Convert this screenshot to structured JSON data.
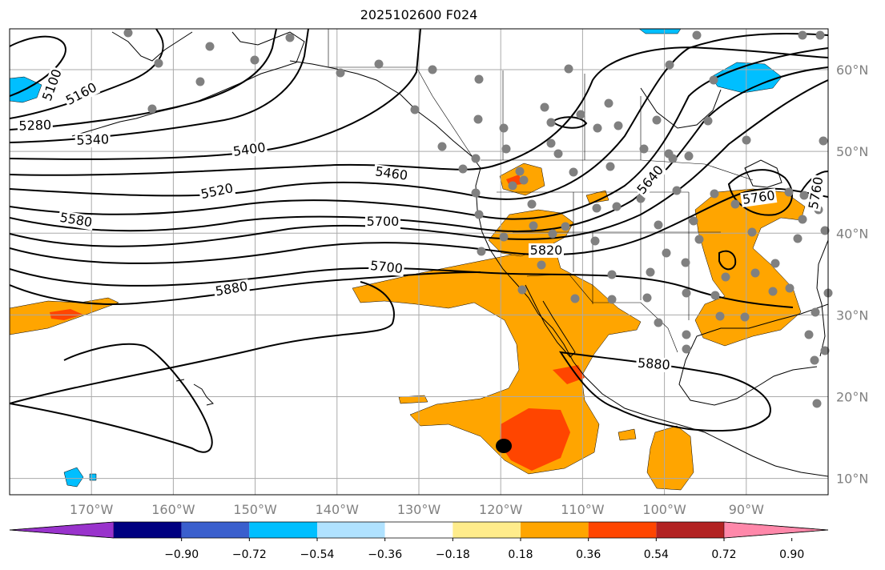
{
  "title": "2025102600 F024",
  "map": {
    "projection": "equirectangular",
    "extent": {
      "lon_min": -180,
      "lon_max": -80,
      "lat_min": 8,
      "lat_max": 65
    },
    "lon_ticks": [
      {
        "v": -170,
        "label": "170°W"
      },
      {
        "v": -160,
        "label": "160°W"
      },
      {
        "v": -150,
        "label": "150°W"
      },
      {
        "v": -140,
        "label": "140°W"
      },
      {
        "v": -130,
        "label": "130°W"
      },
      {
        "v": -120,
        "label": "120°W"
      },
      {
        "v": -110,
        "label": "110°W"
      },
      {
        "v": -100,
        "label": "100°W"
      },
      {
        "v": -90,
        "label": "90°W"
      }
    ],
    "lat_ticks": [
      {
        "v": 60,
        "label": "60°N"
      },
      {
        "v": 50,
        "label": "50°N"
      },
      {
        "v": 40,
        "label": "40°N"
      },
      {
        "v": 30,
        "label": "30°N"
      },
      {
        "v": 20,
        "label": "20°N"
      },
      {
        "v": 10,
        "label": "10°N"
      }
    ],
    "gridlines": true,
    "contour_labels": [
      "5100",
      "5160",
      "5280",
      "5340",
      "5400",
      "5460",
      "5520",
      "5580",
      "5640",
      "5700",
      "5760",
      "5760",
      "5700",
      "5820",
      "5880",
      "5880"
    ]
  },
  "colorbar": {
    "colors": [
      "#9933cc",
      "#000080",
      "#3a5fcd",
      "#00bfff",
      "#b0e2ff",
      "#ffffff",
      "#ffec8b",
      "#ffa500",
      "#ff4500",
      "#b22222",
      "#ff88aa"
    ],
    "tick_labels": [
      "−0.90",
      "−0.72",
      "−0.54",
      "−0.36",
      "−0.18",
      "0.18",
      "0.36",
      "0.54",
      "0.72",
      "0.90"
    ]
  },
  "colors": {
    "positive_fill": "#ffa500",
    "strong_positive_fill": "#ff4500",
    "negative_fill": "#00bfff",
    "grid": "#aaaaaa",
    "station": "#808080"
  }
}
